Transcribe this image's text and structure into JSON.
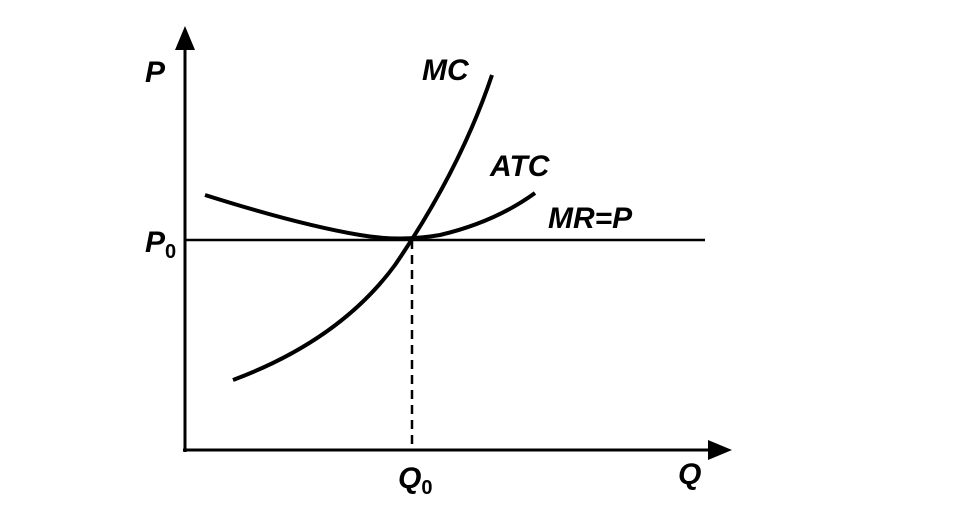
{
  "axes": {
    "y_label": "P",
    "x_label": "Q"
  },
  "levels": {
    "price": {
      "text": "P",
      "sub": "0"
    },
    "quantity": {
      "text": "Q",
      "sub": "0"
    }
  },
  "curves": {
    "mc": "MC",
    "atc": "ATC",
    "mr": "MR=P"
  }
}
